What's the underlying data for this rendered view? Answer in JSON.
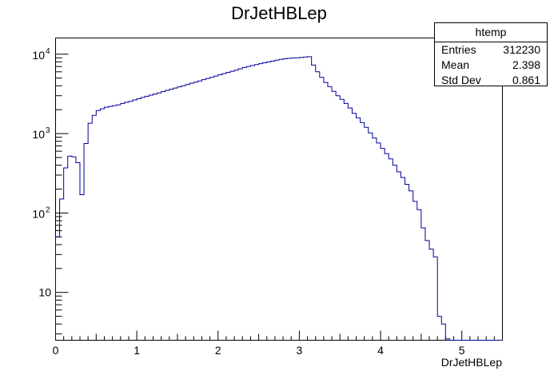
{
  "chart_data": {
    "type": "histogram",
    "title": "DrJetHBLep",
    "xlabel": "DrJetHBLep",
    "ylabel": "",
    "xlim": [
      0,
      5.5
    ],
    "ylim": [
      2.5,
      16000
    ],
    "yscale": "log",
    "grid": false,
    "line_color": "#000099",
    "x_ticks": [
      "0",
      "1",
      "2",
      "3",
      "4",
      "5"
    ],
    "y_ticks": [
      {
        "base": "10",
        "exp": ""
      },
      {
        "base": "10",
        "exp": "2"
      },
      {
        "base": "10",
        "exp": "3"
      },
      {
        "base": "10",
        "exp": "4"
      }
    ],
    "bin_width": 0.05,
    "bin_contents": [
      50,
      150,
      370,
      520,
      510,
      430,
      170,
      750,
      1350,
      1700,
      1950,
      2050,
      2150,
      2200,
      2250,
      2300,
      2400,
      2480,
      2550,
      2650,
      2750,
      2850,
      2950,
      3050,
      3150,
      3250,
      3380,
      3500,
      3620,
      3750,
      3880,
      4000,
      4150,
      4300,
      4450,
      4600,
      4780,
      4950,
      5100,
      5300,
      5500,
      5700,
      5900,
      6100,
      6300,
      6550,
      6800,
      7000,
      7200,
      7400,
      7600,
      7800,
      8000,
      8200,
      8400,
      8600,
      8750,
      8850,
      8950,
      9000,
      9100,
      9200,
      9300,
      7300,
      6000,
      5100,
      4400,
      3900,
      3400,
      3000,
      2700,
      2400,
      2100,
      1800,
      1580,
      1380,
      1200,
      1020,
      880,
      760,
      650,
      560,
      480,
      400,
      330,
      280,
      230,
      190,
      140,
      110,
      65,
      45,
      35,
      28,
      5,
      4,
      2.6,
      0,
      0,
      0,
      0,
      0,
      0,
      0,
      0,
      0,
      0,
      0,
      0,
      0
    ],
    "stats": {
      "name": "htemp",
      "entries_label": "Entries",
      "entries": "312230",
      "mean_label": "Mean",
      "mean": "2.398",
      "std_label": "Std Dev",
      "std": "0.861"
    }
  }
}
